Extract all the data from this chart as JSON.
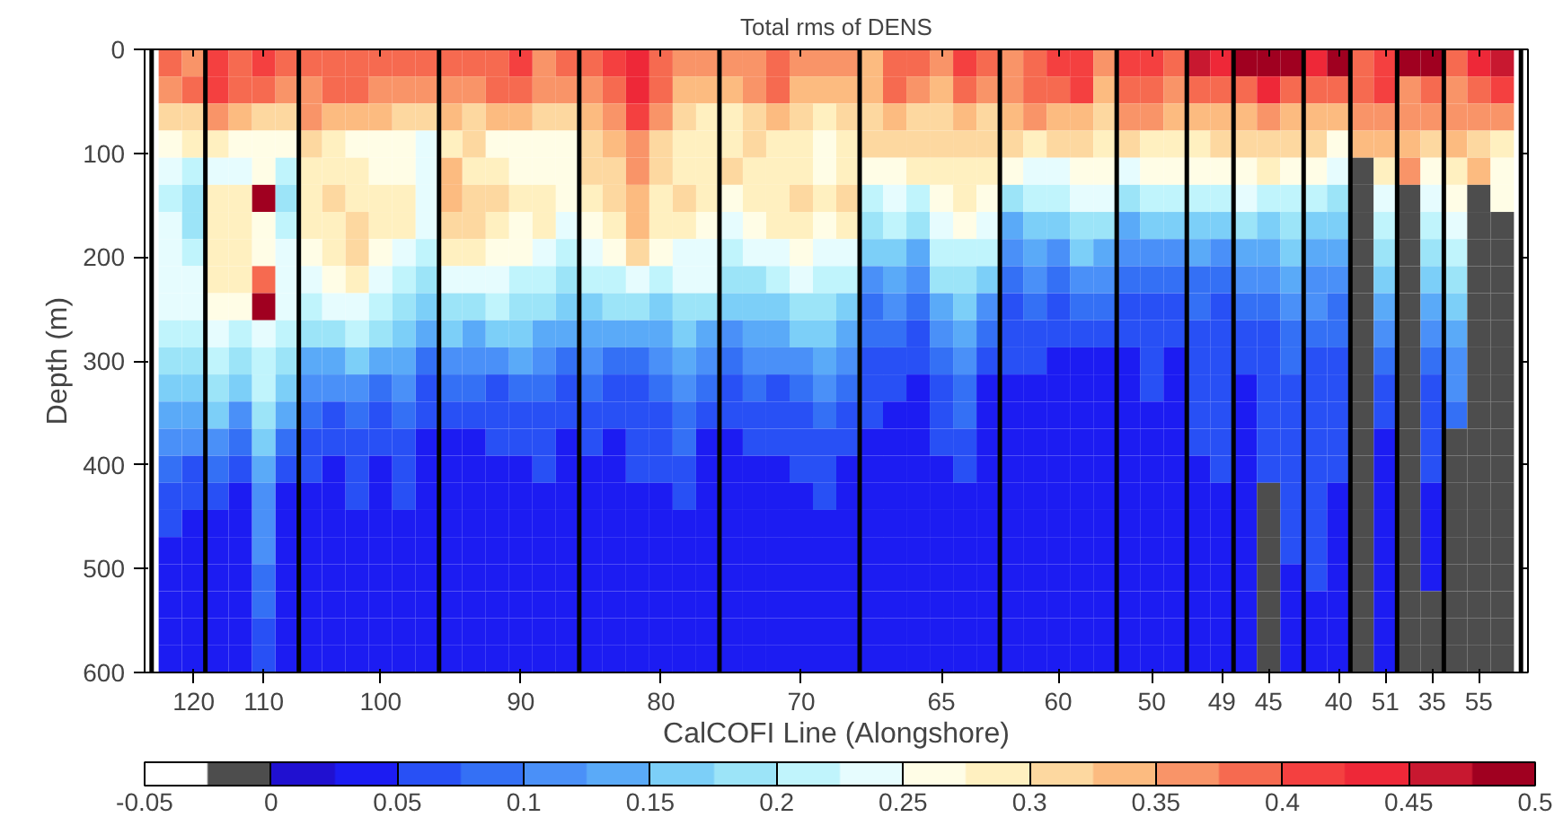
{
  "chart_data": {
    "type": "heatmap",
    "title": "Total rms of DENS",
    "ylabel": "Depth (m)",
    "xlabel": "CalCOFI Line (Alongshore)",
    "ylim": [
      600,
      0
    ],
    "yticks": [
      0,
      100,
      200,
      300,
      400,
      500,
      600
    ],
    "clim": [
      -0.05,
      0.5
    ],
    "cticks": [
      {
        "value": -0.05,
        "label": "-0.05"
      },
      0,
      0.05,
      0.1,
      0.15,
      0.2,
      0.25,
      0.3,
      0.35,
      0.4,
      0.45,
      0.5
    ],
    "categories": [
      null,
      "120",
      null,
      null,
      "110",
      null,
      null,
      null,
      null,
      "100",
      null,
      null,
      null,
      null,
      null,
      "90",
      null,
      null,
      null,
      null,
      null,
      "80",
      null,
      null,
      null,
      null,
      null,
      "70",
      null,
      null,
      null,
      null,
      null,
      "65",
      null,
      null,
      null,
      null,
      "60",
      null,
      null,
      null,
      "50",
      null,
      null,
      "49",
      null,
      "45",
      null,
      null,
      "40",
      null,
      "51",
      null,
      "35",
      null,
      "55",
      null
    ],
    "cells": [
      [
        0.39,
        0.36,
        0.41,
        0.39,
        0.41,
        0.39,
        0.39,
        0.39,
        0.39,
        0.39,
        0.39,
        0.39,
        0.39,
        0.39,
        0.39,
        0.41,
        0.36,
        0.39,
        0.39,
        0.41,
        0.44,
        0.39,
        0.36,
        0.36,
        0.36,
        0.36,
        0.39,
        0.36,
        0.36,
        0.36,
        0.34,
        0.39,
        0.39,
        0.36,
        0.41,
        0.39,
        0.36,
        0.39,
        0.41,
        0.41,
        0.36,
        0.41,
        0.41,
        0.39,
        0.46,
        0.44,
        0.49,
        0.49,
        0.49,
        0.44,
        0.49,
        0.39,
        0.41,
        0.49,
        0.49,
        0.39,
        0.44,
        0.46
      ],
      [
        0.36,
        0.39,
        0.41,
        0.39,
        0.39,
        0.36,
        0.36,
        0.39,
        0.39,
        0.36,
        0.36,
        0.36,
        0.36,
        0.36,
        0.39,
        0.39,
        0.36,
        0.36,
        0.36,
        0.39,
        0.44,
        0.39,
        0.34,
        0.34,
        0.34,
        0.36,
        0.39,
        0.34,
        0.34,
        0.34,
        0.34,
        0.39,
        0.36,
        0.34,
        0.39,
        0.36,
        0.36,
        0.39,
        0.39,
        0.41,
        0.34,
        0.39,
        0.39,
        0.36,
        0.39,
        0.39,
        0.39,
        0.44,
        0.39,
        0.39,
        0.39,
        0.39,
        0.41,
        0.36,
        0.39,
        0.36,
        0.39,
        0.41
      ],
      [
        0.31,
        0.31,
        0.36,
        0.34,
        0.31,
        0.31,
        0.36,
        0.34,
        0.34,
        0.34,
        0.31,
        0.31,
        0.34,
        0.31,
        0.34,
        0.34,
        0.31,
        0.31,
        0.34,
        0.36,
        0.41,
        0.36,
        0.31,
        0.29,
        0.29,
        0.31,
        0.34,
        0.31,
        0.29,
        0.31,
        0.31,
        0.34,
        0.31,
        0.31,
        0.34,
        0.31,
        0.34,
        0.36,
        0.34,
        0.34,
        0.31,
        0.36,
        0.36,
        0.34,
        0.34,
        0.34,
        0.34,
        0.36,
        0.34,
        0.34,
        0.34,
        0.36,
        0.36,
        0.36,
        0.36,
        0.36,
        0.36,
        0.36
      ],
      [
        0.26,
        0.29,
        0.29,
        0.26,
        0.26,
        0.26,
        0.31,
        0.29,
        0.26,
        0.26,
        0.26,
        0.24,
        0.29,
        0.31,
        0.26,
        0.26,
        0.26,
        0.26,
        0.31,
        0.34,
        0.36,
        0.31,
        0.29,
        0.29,
        0.29,
        0.31,
        0.29,
        0.29,
        0.26,
        0.29,
        0.31,
        0.31,
        0.31,
        0.31,
        0.31,
        0.31,
        0.31,
        0.29,
        0.31,
        0.31,
        0.29,
        0.31,
        0.29,
        0.29,
        0.29,
        0.31,
        0.31,
        0.31,
        0.31,
        0.31,
        0.26,
        0.34,
        0.34,
        0.34,
        0.31,
        0.34,
        0.31,
        0.29
      ],
      [
        0.24,
        0.21,
        0.24,
        0.24,
        0.26,
        0.21,
        0.29,
        0.29,
        0.29,
        0.26,
        0.26,
        0.24,
        0.34,
        0.29,
        0.29,
        0.26,
        0.26,
        0.26,
        0.31,
        0.31,
        0.36,
        0.31,
        0.29,
        0.29,
        0.31,
        0.29,
        0.29,
        0.29,
        0.26,
        0.29,
        0.26,
        0.26,
        0.29,
        0.29,
        0.29,
        0.29,
        0.26,
        0.24,
        0.24,
        0.26,
        0.26,
        0.24,
        0.26,
        0.26,
        0.26,
        0.26,
        0.26,
        0.29,
        0.26,
        0.26,
        0.24,
        -0.01,
        0.29,
        0.36,
        0.26,
        0.29,
        0.34,
        0.26
      ],
      [
        0.21,
        0.19,
        0.29,
        0.29,
        0.49,
        0.19,
        0.29,
        0.31,
        0.29,
        0.29,
        0.29,
        0.24,
        0.34,
        0.31,
        0.31,
        0.29,
        0.29,
        0.26,
        0.29,
        0.31,
        0.34,
        0.29,
        0.31,
        0.29,
        0.26,
        0.29,
        0.29,
        0.31,
        0.29,
        0.31,
        0.21,
        0.24,
        0.21,
        0.26,
        0.29,
        0.26,
        0.19,
        0.21,
        0.21,
        0.24,
        0.24,
        0.19,
        0.21,
        0.21,
        0.21,
        0.21,
        0.24,
        0.21,
        0.21,
        0.21,
        0.19,
        -0.01,
        0.24,
        -0.01,
        0.24,
        0.26,
        -0.01,
        0.26
      ],
      [
        0.24,
        0.19,
        0.29,
        0.29,
        0.26,
        0.21,
        0.29,
        0.29,
        0.31,
        0.29,
        0.29,
        0.24,
        0.31,
        0.31,
        0.29,
        0.26,
        0.29,
        0.24,
        0.26,
        0.29,
        0.34,
        0.29,
        0.29,
        0.26,
        0.24,
        0.26,
        0.29,
        0.29,
        0.26,
        0.29,
        0.19,
        0.21,
        0.19,
        0.24,
        0.26,
        0.24,
        0.14,
        0.16,
        0.16,
        0.19,
        0.19,
        0.14,
        0.16,
        0.16,
        0.16,
        0.16,
        0.19,
        0.16,
        0.19,
        0.16,
        0.16,
        -0.01,
        0.21,
        -0.01,
        0.21,
        0.24,
        -0.01,
        -0.01
      ],
      [
        0.24,
        0.21,
        0.29,
        0.29,
        0.26,
        0.24,
        0.26,
        0.29,
        0.31,
        0.26,
        0.24,
        0.21,
        0.29,
        0.29,
        0.26,
        0.26,
        0.24,
        0.21,
        0.24,
        0.26,
        0.31,
        0.26,
        0.24,
        0.24,
        0.21,
        0.24,
        0.24,
        0.26,
        0.24,
        0.24,
        0.16,
        0.16,
        0.14,
        0.21,
        0.21,
        0.21,
        0.11,
        0.14,
        0.11,
        0.16,
        0.14,
        0.11,
        0.11,
        0.11,
        0.14,
        0.11,
        0.14,
        0.14,
        0.16,
        0.14,
        0.14,
        -0.01,
        0.19,
        -0.01,
        0.19,
        0.21,
        -0.01,
        -0.01
      ],
      [
        0.24,
        0.24,
        0.29,
        0.29,
        0.39,
        0.24,
        0.24,
        0.26,
        0.29,
        0.24,
        0.21,
        0.19,
        0.24,
        0.24,
        0.24,
        0.21,
        0.21,
        0.19,
        0.21,
        0.21,
        0.24,
        0.21,
        0.24,
        0.24,
        0.19,
        0.19,
        0.21,
        0.24,
        0.21,
        0.21,
        0.11,
        0.14,
        0.11,
        0.19,
        0.19,
        0.16,
        0.09,
        0.11,
        0.09,
        0.11,
        0.11,
        0.09,
        0.09,
        0.09,
        0.09,
        0.09,
        0.11,
        0.11,
        0.14,
        0.11,
        0.11,
        -0.01,
        0.16,
        -0.01,
        0.16,
        0.19,
        -0.01,
        -0.01
      ],
      [
        0.24,
        0.24,
        0.26,
        0.26,
        0.49,
        0.24,
        0.21,
        0.24,
        0.24,
        0.21,
        0.19,
        0.16,
        0.19,
        0.19,
        0.21,
        0.19,
        0.19,
        0.16,
        0.16,
        0.19,
        0.19,
        0.16,
        0.19,
        0.19,
        0.16,
        0.16,
        0.16,
        0.19,
        0.19,
        0.16,
        0.09,
        0.11,
        0.09,
        0.14,
        0.16,
        0.11,
        0.06,
        0.09,
        0.06,
        0.09,
        0.09,
        0.06,
        0.06,
        0.06,
        0.09,
        0.06,
        0.09,
        0.09,
        0.11,
        0.11,
        0.09,
        -0.01,
        0.14,
        -0.01,
        0.14,
        0.16,
        -0.01,
        -0.01
      ],
      [
        0.21,
        0.21,
        0.24,
        0.21,
        0.24,
        0.21,
        0.19,
        0.19,
        0.21,
        0.19,
        0.16,
        0.14,
        0.16,
        0.14,
        0.16,
        0.16,
        0.14,
        0.14,
        0.14,
        0.14,
        0.14,
        0.14,
        0.16,
        0.14,
        0.11,
        0.14,
        0.14,
        0.16,
        0.16,
        0.14,
        0.09,
        0.09,
        0.06,
        0.11,
        0.14,
        0.09,
        0.06,
        0.06,
        0.06,
        0.06,
        0.06,
        0.06,
        0.06,
        0.06,
        0.06,
        0.06,
        0.06,
        0.06,
        0.09,
        0.09,
        0.09,
        -0.01,
        0.11,
        -0.01,
        0.11,
        0.14,
        -0.01,
        -0.01
      ],
      [
        0.19,
        0.19,
        0.21,
        0.19,
        0.21,
        0.19,
        0.14,
        0.14,
        0.16,
        0.14,
        0.14,
        0.09,
        0.11,
        0.11,
        0.11,
        0.14,
        0.11,
        0.09,
        0.11,
        0.09,
        0.09,
        0.11,
        0.14,
        0.11,
        0.09,
        0.11,
        0.11,
        0.11,
        0.14,
        0.11,
        0.06,
        0.06,
        0.06,
        0.09,
        0.11,
        0.06,
        0.06,
        0.06,
        0.04,
        0.04,
        0.04,
        0.04,
        0.06,
        0.04,
        0.06,
        0.06,
        0.06,
        0.06,
        0.09,
        0.06,
        0.06,
        -0.01,
        0.09,
        -0.01,
        0.09,
        0.11,
        -0.01,
        -0.01
      ],
      [
        0.16,
        0.16,
        0.19,
        0.16,
        0.21,
        0.16,
        0.11,
        0.11,
        0.11,
        0.09,
        0.11,
        0.06,
        0.09,
        0.09,
        0.06,
        0.09,
        0.09,
        0.06,
        0.09,
        0.06,
        0.06,
        0.09,
        0.11,
        0.09,
        0.06,
        0.09,
        0.06,
        0.09,
        0.11,
        0.09,
        0.06,
        0.06,
        0.04,
        0.06,
        0.09,
        0.04,
        0.04,
        0.04,
        0.04,
        0.04,
        0.04,
        0.04,
        0.06,
        0.04,
        0.06,
        0.06,
        0.04,
        0.06,
        0.06,
        0.06,
        0.06,
        -0.01,
        0.06,
        -0.01,
        0.06,
        0.11,
        -0.01,
        -0.01
      ],
      [
        0.14,
        0.14,
        0.16,
        0.11,
        0.19,
        0.14,
        0.09,
        0.06,
        0.09,
        0.06,
        0.09,
        0.06,
        0.06,
        0.06,
        0.06,
        0.06,
        0.06,
        0.06,
        0.06,
        0.06,
        0.06,
        0.06,
        0.09,
        0.06,
        0.06,
        0.06,
        0.06,
        0.06,
        0.09,
        0.06,
        0.06,
        0.04,
        0.04,
        0.06,
        0.09,
        0.04,
        0.04,
        0.04,
        0.04,
        0.04,
        0.04,
        0.04,
        0.04,
        0.04,
        0.06,
        0.06,
        0.04,
        0.06,
        0.06,
        0.06,
        0.06,
        -0.01,
        0.06,
        -0.01,
        0.06,
        0.09,
        -0.01,
        -0.01
      ],
      [
        0.11,
        0.11,
        0.11,
        0.09,
        0.16,
        0.09,
        0.06,
        0.06,
        0.06,
        0.06,
        0.06,
        0.04,
        0.04,
        0.04,
        0.06,
        0.06,
        0.06,
        0.04,
        0.06,
        0.04,
        0.06,
        0.06,
        0.09,
        0.04,
        0.04,
        0.06,
        0.06,
        0.06,
        0.06,
        0.06,
        0.04,
        0.04,
        0.04,
        0.06,
        0.06,
        0.04,
        0.04,
        0.04,
        0.04,
        0.04,
        0.04,
        0.04,
        0.04,
        0.04,
        0.06,
        0.06,
        0.04,
        0.06,
        0.06,
        0.06,
        0.06,
        -0.01,
        0.04,
        -0.01,
        0.06,
        -0.01,
        -0.01,
        -0.01
      ],
      [
        0.09,
        0.06,
        0.09,
        0.06,
        0.14,
        0.06,
        0.06,
        0.04,
        0.06,
        0.04,
        0.06,
        0.04,
        0.04,
        0.04,
        0.04,
        0.04,
        0.06,
        0.04,
        0.04,
        0.04,
        0.06,
        0.06,
        0.06,
        0.04,
        0.04,
        0.04,
        0.04,
        0.06,
        0.06,
        0.04,
        0.04,
        0.04,
        0.04,
        0.04,
        0.06,
        0.04,
        0.04,
        0.04,
        0.04,
        0.04,
        0.04,
        0.04,
        0.04,
        0.04,
        0.04,
        0.06,
        0.04,
        0.06,
        0.06,
        0.06,
        0.06,
        -0.01,
        0.04,
        -0.01,
        0.06,
        -0.01,
        -0.01,
        -0.01
      ],
      [
        0.06,
        0.06,
        0.06,
        0.04,
        0.11,
        0.04,
        0.04,
        0.04,
        0.06,
        0.04,
        0.06,
        0.04,
        0.04,
        0.04,
        0.04,
        0.04,
        0.04,
        0.04,
        0.04,
        0.04,
        0.04,
        0.04,
        0.06,
        0.04,
        0.04,
        0.04,
        0.04,
        0.04,
        0.06,
        0.04,
        0.04,
        0.04,
        0.04,
        0.04,
        0.04,
        0.04,
        0.04,
        0.04,
        0.04,
        0.04,
        0.04,
        0.04,
        0.04,
        0.04,
        0.04,
        0.04,
        0.04,
        -0.01,
        0.06,
        0.06,
        0.04,
        -0.01,
        0.04,
        -0.01,
        0.04,
        -0.01,
        -0.01,
        -0.01
      ],
      [
        0.06,
        0.04,
        0.04,
        0.04,
        0.11,
        0.04,
        0.04,
        0.04,
        0.04,
        0.04,
        0.04,
        0.04,
        0.04,
        0.04,
        0.04,
        0.04,
        0.04,
        0.04,
        0.04,
        0.04,
        0.04,
        0.04,
        0.04,
        0.04,
        0.04,
        0.04,
        0.04,
        0.04,
        0.04,
        0.04,
        0.04,
        0.04,
        0.04,
        0.04,
        0.04,
        0.04,
        0.04,
        0.04,
        0.04,
        0.04,
        0.04,
        0.04,
        0.04,
        0.04,
        0.04,
        0.04,
        0.04,
        -0.01,
        0.06,
        0.06,
        0.04,
        -0.01,
        0.04,
        -0.01,
        0.04,
        -0.01,
        -0.01,
        -0.01
      ],
      [
        0.04,
        0.04,
        0.04,
        0.04,
        0.11,
        0.04,
        0.04,
        0.04,
        0.04,
        0.04,
        0.04,
        0.04,
        0.04,
        0.04,
        0.04,
        0.04,
        0.04,
        0.04,
        0.04,
        0.04,
        0.04,
        0.04,
        0.04,
        0.04,
        0.04,
        0.04,
        0.04,
        0.04,
        0.04,
        0.04,
        0.04,
        0.04,
        0.04,
        0.04,
        0.04,
        0.04,
        0.04,
        0.04,
        0.04,
        0.04,
        0.04,
        0.04,
        0.04,
        0.04,
        0.04,
        0.04,
        0.04,
        -0.01,
        0.06,
        0.06,
        0.04,
        -0.01,
        0.04,
        -0.01,
        0.04,
        -0.01,
        -0.01,
        -0.01
      ],
      [
        0.04,
        0.04,
        0.04,
        0.04,
        0.09,
        0.04,
        0.04,
        0.04,
        0.04,
        0.04,
        0.04,
        0.04,
        0.04,
        0.04,
        0.04,
        0.04,
        0.04,
        0.04,
        0.04,
        0.04,
        0.04,
        0.04,
        0.04,
        0.04,
        0.04,
        0.04,
        0.04,
        0.04,
        0.04,
        0.04,
        0.04,
        0.04,
        0.04,
        0.04,
        0.04,
        0.04,
        0.04,
        0.04,
        0.04,
        0.04,
        0.04,
        0.04,
        0.04,
        0.04,
        0.04,
        0.04,
        0.04,
        -0.01,
        0.04,
        0.06,
        0.04,
        -0.01,
        0.04,
        -0.01,
        0.04,
        -0.01,
        -0.01,
        -0.01
      ],
      [
        0.04,
        0.04,
        0.04,
        0.04,
        0.09,
        0.04,
        0.04,
        0.04,
        0.04,
        0.04,
        0.04,
        0.04,
        0.04,
        0.04,
        0.04,
        0.04,
        0.04,
        0.04,
        0.04,
        0.04,
        0.04,
        0.04,
        0.04,
        0.04,
        0.04,
        0.04,
        0.04,
        0.04,
        0.04,
        0.04,
        0.04,
        0.04,
        0.04,
        0.04,
        0.04,
        0.04,
        0.04,
        0.04,
        0.04,
        0.04,
        0.04,
        0.04,
        0.04,
        0.04,
        0.04,
        0.04,
        0.04,
        -0.01,
        0.04,
        0.04,
        0.04,
        -0.01,
        0.04,
        -0.01,
        -0.01,
        -0.01,
        -0.01,
        -0.01
      ],
      [
        0.04,
        0.04,
        0.04,
        0.04,
        0.06,
        0.04,
        0.04,
        0.04,
        0.04,
        0.04,
        0.04,
        0.04,
        0.04,
        0.04,
        0.04,
        0.04,
        0.04,
        0.04,
        0.04,
        0.04,
        0.04,
        0.04,
        0.04,
        0.04,
        0.04,
        0.04,
        0.04,
        0.04,
        0.04,
        0.04,
        0.04,
        0.04,
        0.04,
        0.04,
        0.04,
        0.04,
        0.04,
        0.04,
        0.04,
        0.04,
        0.04,
        0.04,
        0.04,
        0.04,
        0.04,
        0.04,
        0.04,
        -0.01,
        0.04,
        0.04,
        0.04,
        -0.01,
        0.04,
        -0.01,
        -0.01,
        -0.01,
        -0.01,
        -0.01
      ],
      [
        0.04,
        0.04,
        0.04,
        0.04,
        0.06,
        0.04,
        0.04,
        0.04,
        0.04,
        0.04,
        0.04,
        0.04,
        0.04,
        0.04,
        0.04,
        0.04,
        0.04,
        0.04,
        0.04,
        0.04,
        0.04,
        0.04,
        0.04,
        0.04,
        0.04,
        0.04,
        0.04,
        0.04,
        0.04,
        0.04,
        0.04,
        0.04,
        0.04,
        0.04,
        0.04,
        0.04,
        0.04,
        0.04,
        0.04,
        0.04,
        0.04,
        0.04,
        0.04,
        0.04,
        0.04,
        0.04,
        0.04,
        -0.01,
        0.04,
        0.04,
        0.04,
        -0.01,
        0.04,
        -0.01,
        -0.01,
        -0.01,
        -0.01,
        -0.01
      ]
    ]
  }
}
